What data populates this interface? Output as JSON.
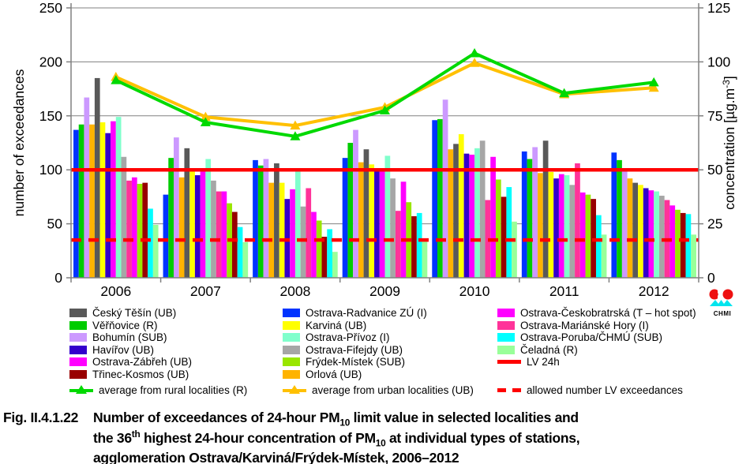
{
  "logo": {
    "text": "CHMI"
  },
  "caption": {
    "fig": "Fig. II.4.1.22",
    "segments": [
      {
        "t": "Number of exceedances of 24-hour PM"
      },
      {
        "t": "10",
        "v": "sub"
      },
      {
        "t": " limit value in selected localities and"
      },
      {
        "v": "br"
      },
      {
        "t": "the 36"
      },
      {
        "t": "th",
        "v": "sup"
      },
      {
        "t": " highest 24-hour concentration of PM"
      },
      {
        "t": "10",
        "v": "sub"
      },
      {
        "t": " at individual types of stations,"
      },
      {
        "v": "br"
      },
      {
        "t": "agglomeration Ostrava/Karviná/Frýdek-Místek, 2006–2012"
      }
    ]
  },
  "legend": {
    "columns": [
      {
        "items": [
          {
            "label": "Český Těšín (UB)",
            "swatch": "rect",
            "color": "#595959"
          },
          {
            "label": "Věřňovice (R)",
            "swatch": "rect",
            "color": "#00CC00"
          },
          {
            "label": "Bohumín (SUB)",
            "swatch": "rect",
            "color": "#CC99FF"
          },
          {
            "label": "Havířov (UB)",
            "swatch": "rect",
            "color": "#3300CC"
          },
          {
            "label": "Ostrava-Zábřeh (UB)",
            "swatch": "rect",
            "color": "#FF00FF"
          },
          {
            "label": "Třinec-Kosmos (UB)",
            "swatch": "rect",
            "color": "#990000"
          },
          {
            "label": "average from rural localities (R)",
            "swatch": "line-marker",
            "color": "#00D900"
          }
        ]
      },
      {
        "items": [
          {
            "label": "Ostrava-Radvanice ZÚ (I)",
            "swatch": "rect",
            "color": "#0033FF"
          },
          {
            "label": "Karviná (UB)",
            "swatch": "rect",
            "color": "#FFFF00"
          },
          {
            "label": "Ostrava-Přívoz (I)",
            "swatch": "rect",
            "color": "#80FFCC"
          },
          {
            "label": "Ostrava-Fifejdy (UB)",
            "swatch": "rect",
            "color": "#A6A6A6"
          },
          {
            "label": "Frýdek-Místek (SUB)",
            "swatch": "rect",
            "color": "#99E600"
          },
          {
            "label": "Orlová (UB)",
            "swatch": "rect",
            "color": "#FFB300"
          },
          {
            "label": "average from urban localities  (UB)",
            "swatch": "line-marker",
            "color": "#FFC000"
          }
        ]
      },
      {
        "items": [
          {
            "label": "Ostrava-Českobratrská (T – hot spot)",
            "swatch": "rect",
            "color": "#FF00FF"
          },
          {
            "label": "Ostrava-Mariánské Hory (I)",
            "swatch": "rect",
            "color": "#FF3399"
          },
          {
            "label": "Ostrava-Poruba/ČHMÚ (SUB)",
            "swatch": "rect",
            "color": "#00FFFF"
          },
          {
            "label": "Čeladná (R)",
            "swatch": "rect",
            "color": "#99FF99"
          },
          {
            "label": "LV 24h",
            "swatch": "refline",
            "color": "#FF0000"
          },
          {
            "label": "",
            "swatch": "none",
            "color": ""
          },
          {
            "label": "allowed number LV exceedances",
            "swatch": "dash",
            "color": "#FF0000"
          }
        ]
      }
    ]
  },
  "chart_data": {
    "type": "bar",
    "categories": [
      "2006",
      "2007",
      "2008",
      "2009",
      "2010",
      "2011",
      "2012"
    ],
    "ylabel_left": "number of exceedances",
    "ylabel_right_pre": "concentration [µg.m",
    "ylabel_right_sup": "-3",
    "ylabel_right_post": "]",
    "ylim_left": [
      0,
      250
    ],
    "yticks_left": [
      0,
      50,
      100,
      150,
      200,
      250
    ],
    "ylim_right": [
      0,
      125
    ],
    "yticks_right": [
      0,
      25,
      50,
      75,
      100,
      125
    ],
    "grid": "on",
    "grid_color": "#808080",
    "axis_color": "#808080",
    "series": [
      {
        "name": "Ostrava-Radvanice ZÚ (I)",
        "color": "#0033FF",
        "values": [
          137,
          77,
          109,
          111,
          146,
          117,
          116
        ]
      },
      {
        "name": "Věřňovice (R)",
        "color": "#00CC00",
        "values": [
          142,
          111,
          104,
          125,
          147,
          110,
          109
        ]
      },
      {
        "name": "Bohumín (SUB)",
        "color": "#CC99FF",
        "values": [
          167,
          130,
          110,
          137,
          165,
          121,
          100
        ]
      },
      {
        "name": "Orlová (UB)",
        "color": "#FFB300",
        "values": [
          142,
          93,
          88,
          107,
          119,
          97,
          92
        ]
      },
      {
        "name": "Český Těšín (UB)",
        "color": "#595959",
        "values": [
          185,
          120,
          106,
          119,
          124,
          127,
          88
        ]
      },
      {
        "name": "Karviná (UB)",
        "color": "#FFFF00",
        "values": [
          144,
          99,
          88,
          105,
          133,
          98,
          86
        ]
      },
      {
        "name": "Havířov (UB)",
        "color": "#3300CC",
        "values": [
          134,
          95,
          73,
          99,
          115,
          92,
          83
        ]
      },
      {
        "name": "Ostrava-Českobratrská (T – hot spot)",
        "color": "#FF00FF",
        "values": [
          145,
          99,
          82,
          99,
          114,
          96,
          81
        ]
      },
      {
        "name": "Ostrava-Přívoz (I)",
        "color": "#80FFCC",
        "values": [
          149,
          110,
          100,
          113,
          120,
          95,
          80
        ]
      },
      {
        "name": "Ostrava-Fifejdy (UB)",
        "color": "#A6A6A6",
        "values": [
          112,
          90,
          66,
          92,
          127,
          86,
          76
        ]
      },
      {
        "name": "Ostrava-Mariánské Hory (I)",
        "color": "#FF3399",
        "values": [
          90,
          80,
          83,
          62,
          72,
          106,
          72
        ]
      },
      {
        "name": "Ostrava-Zábřeh (UB)",
        "color": "#FF00FF",
        "values": [
          93,
          80,
          61,
          89,
          112,
          79,
          67
        ]
      },
      {
        "name": "Frýdek-Místek (SUB)",
        "color": "#99E600",
        "values": [
          87,
          69,
          53,
          70,
          91,
          77,
          63
        ]
      },
      {
        "name": "Třinec-Kosmos (UB)",
        "color": "#990000",
        "values": [
          88,
          61,
          38,
          57,
          75,
          73,
          60
        ]
      },
      {
        "name": "Ostrava-Poruba/ČHMÚ (SUB)",
        "color": "#00FFFF",
        "values": [
          64,
          47,
          45,
          60,
          84,
          58,
          59
        ]
      },
      {
        "name": "Čeladná (R)",
        "color": "#99FF99",
        "values": [
          49,
          33,
          24,
          36,
          52,
          40,
          40
        ]
      }
    ],
    "line_series": [
      {
        "name": "average from urban localities  (UB)",
        "color": "#FFC000",
        "values": [
          186,
          149,
          141,
          158,
          199,
          170,
          176
        ]
      },
      {
        "name": "average from rural localities (R)",
        "color": "#00D900",
        "values": [
          183,
          144,
          131,
          155,
          208,
          171,
          181
        ]
      }
    ],
    "ref_lines": [
      {
        "name": "LV 24h",
        "value": 100,
        "style": "solid",
        "color": "#FF0000"
      },
      {
        "name": "allowed number LV exceedances",
        "value": 35,
        "style": "dashed",
        "color": "#FF0000"
      }
    ]
  }
}
